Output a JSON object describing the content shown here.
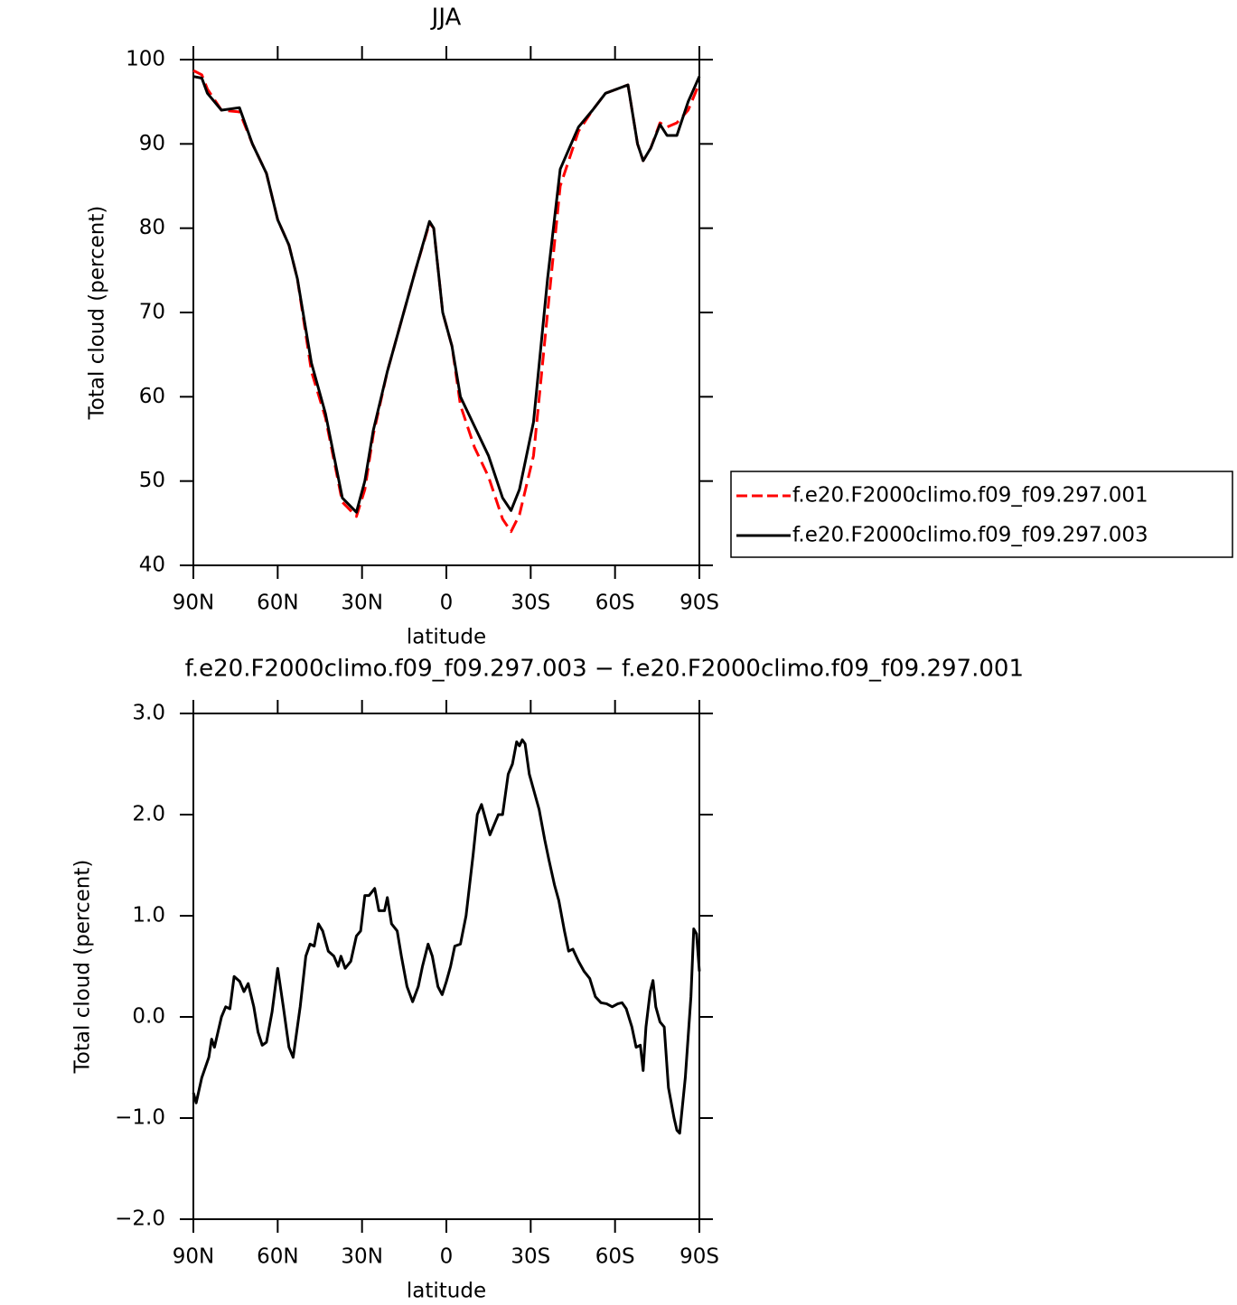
{
  "chart_data": [
    {
      "type": "line",
      "title": "JJA",
      "xlabel": "latitude",
      "ylabel": "Total cloud (percent)",
      "xlim": [
        90,
        -90
      ],
      "xticks": [
        {
          "value": 90,
          "label": "90N"
        },
        {
          "value": 60,
          "label": "60N"
        },
        {
          "value": 30,
          "label": "30N"
        },
        0,
        {
          "value": -30,
          "label": "30S"
        },
        {
          "value": -60,
          "label": "60S"
        },
        {
          "value": -90,
          "label": "90S"
        }
      ],
      "ylim": [
        40,
        100
      ],
      "yticks": [
        40,
        50,
        60,
        70,
        80,
        90,
        100
      ],
      "legend": "right",
      "x": [
        90,
        87,
        85,
        80,
        73.6,
        69,
        64,
        60,
        56,
        53,
        48,
        43,
        37,
        32,
        29,
        26,
        21,
        16,
        11,
        6,
        4.5,
        1.3,
        -2,
        -5,
        -10,
        -15,
        -20,
        -23,
        -26,
        -31,
        -36,
        -40.5,
        -47,
        -52,
        -56.6,
        -64.6,
        -68,
        -70,
        -72.7,
        -76,
        -78.5,
        -82,
        -86,
        -90
      ],
      "series": [
        {
          "name": "f.e20.F2000climo.f09_f09.297.001",
          "color": "#ff0000",
          "dashed": true,
          "values": [
            98.7,
            98.2,
            96.5,
            94,
            93.8,
            90,
            86.5,
            81,
            78,
            74,
            63,
            57.5,
            47.5,
            45.8,
            49,
            55.5,
            63,
            69,
            75,
            80.6,
            80,
            70,
            66,
            59,
            54,
            50.5,
            45.5,
            44,
            46,
            53,
            70,
            85,
            91.5,
            94,
            96,
            97,
            90,
            88,
            89.5,
            92.5,
            92,
            92.5,
            94,
            97.2
          ]
        },
        {
          "name": "f.e20.F2000climo.f09_f09.297.003",
          "color": "#000000",
          "dashed": false,
          "values": [
            98,
            97.8,
            96,
            94,
            94.3,
            90,
            86.5,
            81,
            78,
            74,
            64,
            58,
            48,
            46.3,
            50,
            56,
            63,
            69,
            75,
            80.8,
            80,
            70,
            66,
            60,
            56.5,
            53,
            48,
            46.5,
            49,
            57,
            74,
            87,
            92,
            94,
            96,
            97,
            90,
            88,
            89.5,
            92.3,
            91,
            91,
            95,
            98
          ]
        }
      ]
    },
    {
      "type": "line",
      "title": "f.e20.F2000climo.f09_f09.297.003 − f.e20.F2000climo.f09_f09.297.001",
      "xlabel": "latitude",
      "ylabel": "Total cloud (percent)",
      "xlim": [
        90,
        -90
      ],
      "xticks": [
        {
          "value": 90,
          "label": "90N"
        },
        {
          "value": 60,
          "label": "60N"
        },
        {
          "value": 30,
          "label": "30N"
        },
        0,
        {
          "value": -30,
          "label": "30S"
        },
        {
          "value": -60,
          "label": "60S"
        },
        {
          "value": -90,
          "label": "90S"
        }
      ],
      "ylim": [
        -2,
        3
      ],
      "yticks": [
        {
          "value": -2,
          "label": "−2.0"
        },
        {
          "value": -1,
          "label": "−1.0"
        },
        {
          "value": 0,
          "label": "0.0"
        },
        {
          "value": 1,
          "label": "1.0"
        },
        {
          "value": 2,
          "label": "2.0"
        },
        {
          "value": 3,
          "label": "3.0"
        }
      ],
      "color": "#000000",
      "x": [
        90,
        89,
        87,
        84.5,
        83.5,
        82.5,
        80,
        78.5,
        77,
        75.5,
        73.5,
        72,
        70.5,
        68.5,
        67,
        65.5,
        64,
        62,
        60,
        58,
        56,
        54.5,
        52,
        50,
        48.5,
        47,
        45.5,
        44,
        42,
        40,
        38.5,
        37.5,
        36,
        34,
        32,
        30.5,
        29,
        27.5,
        25.5,
        24,
        22,
        21,
        19.5,
        17.5,
        16,
        14,
        12,
        10,
        8.5,
        6.5,
        5,
        3,
        1.5,
        0,
        -1.5,
        -3,
        -5,
        -7,
        -9.5,
        -11,
        -12.5,
        -14,
        -15.5,
        -17,
        -18.5,
        -20,
        -22,
        -23.5,
        -25,
        -26,
        -27,
        -28,
        -29.5,
        -31,
        -33,
        -35,
        -36.5,
        -38.5,
        -40,
        -42,
        -43.5,
        -45,
        -47,
        -49,
        -51,
        -53,
        -55,
        -57,
        -59,
        -61,
        -62.5,
        -64,
        -66,
        -67.5,
        -69,
        -70,
        -71,
        -72.5,
        -73.5,
        -74.5,
        -76,
        -77.5,
        -79,
        -81,
        -82,
        -83,
        -85,
        -87,
        -88,
        -89,
        -90
      ],
      "values": [
        -0.75,
        -0.85,
        -0.6,
        -0.4,
        -0.22,
        -0.3,
        0,
        0.1,
        0.08,
        0.4,
        0.35,
        0.25,
        0.33,
        0.1,
        -0.15,
        -0.28,
        -0.25,
        0.05,
        0.48,
        0.1,
        -0.3,
        -0.4,
        0.1,
        0.6,
        0.72,
        0.7,
        0.92,
        0.85,
        0.65,
        0.6,
        0.5,
        0.6,
        0.48,
        0.55,
        0.8,
        0.85,
        1.2,
        1.2,
        1.27,
        1.05,
        1.05,
        1.18,
        0.92,
        0.85,
        0.6,
        0.3,
        0.15,
        0.3,
        0.5,
        0.72,
        0.6,
        0.3,
        0.22,
        0.35,
        0.5,
        0.7,
        0.72,
        1.0,
        1.6,
        2.0,
        2.1,
        1.95,
        1.8,
        1.9,
        2.0,
        2.0,
        2.4,
        2.5,
        2.72,
        2.68,
        2.74,
        2.7,
        2.4,
        2.25,
        2.05,
        1.75,
        1.55,
        1.3,
        1.15,
        0.85,
        0.65,
        0.67,
        0.55,
        0.45,
        0.38,
        0.2,
        0.14,
        0.13,
        0.1,
        0.13,
        0.14,
        0.08,
        -0.1,
        -0.3,
        -0.28,
        -0.53,
        -0.1,
        0.25,
        0.36,
        0.1,
        -0.05,
        -0.1,
        -0.7,
        -1.0,
        -1.12,
        -1.15,
        -0.6,
        0.2,
        0.87,
        0.82,
        0.45
      ]
    }
  ]
}
